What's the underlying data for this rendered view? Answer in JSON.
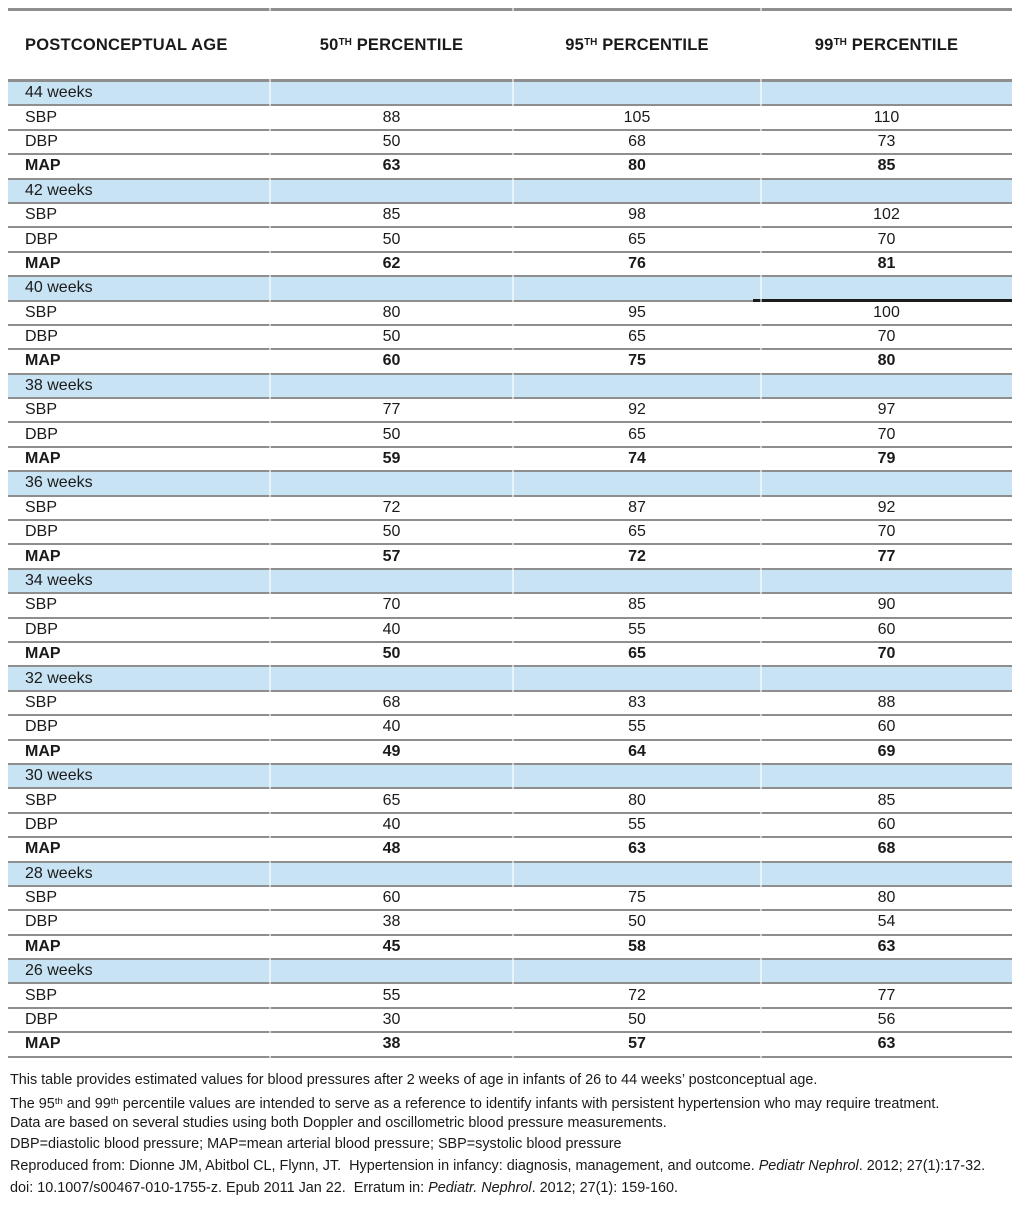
{
  "colors": {
    "band_blue": "#c8e3f3",
    "gridline_gray": "#8e8e8e",
    "artifact_black": "#1b1b1b",
    "text": "#1a1a1a"
  },
  "table": {
    "columns": [
      {
        "text": "POSTCONCEPTUAL AGE"
      },
      {
        "prefix": "50",
        "sup": "TH",
        "suffix": " PERCENTILE"
      },
      {
        "prefix": "95",
        "sup": "TH",
        "suffix": " PERCENTILE"
      },
      {
        "prefix": "99",
        "sup": "TH",
        "suffix": " PERCENTILE"
      }
    ],
    "groups": [
      {
        "age": "44 weeks",
        "artifact": false,
        "rows": [
          {
            "label": "SBP",
            "bold": false,
            "values": [
              "88",
              "105",
              "110"
            ]
          },
          {
            "label": "DBP",
            "bold": false,
            "values": [
              "50",
              "68",
              "73"
            ]
          },
          {
            "label": "MAP",
            "bold": true,
            "values": [
              "63",
              "80",
              "85"
            ]
          }
        ]
      },
      {
        "age": "42 weeks",
        "artifact": false,
        "rows": [
          {
            "label": "SBP",
            "bold": false,
            "values": [
              "85",
              "98",
              "102"
            ]
          },
          {
            "label": "DBP",
            "bold": false,
            "values": [
              "50",
              "65",
              "70"
            ]
          },
          {
            "label": "MAP",
            "bold": true,
            "values": [
              "62",
              "76",
              "81"
            ]
          }
        ]
      },
      {
        "age": "40 weeks",
        "artifact": true,
        "rows": [
          {
            "label": "SBP",
            "bold": false,
            "values": [
              "80",
              "95",
              "100"
            ]
          },
          {
            "label": "DBP",
            "bold": false,
            "values": [
              "50",
              "65",
              "70"
            ]
          },
          {
            "label": "MAP",
            "bold": true,
            "values": [
              "60",
              "75",
              "80"
            ]
          }
        ]
      },
      {
        "age": "38 weeks",
        "artifact": false,
        "rows": [
          {
            "label": "SBP",
            "bold": false,
            "values": [
              "77",
              "92",
              "97"
            ]
          },
          {
            "label": "DBP",
            "bold": false,
            "values": [
              "50",
              "65",
              "70"
            ]
          },
          {
            "label": "MAP",
            "bold": true,
            "values": [
              "59",
              "74",
              "79"
            ]
          }
        ]
      },
      {
        "age": "36 weeks",
        "artifact": false,
        "rows": [
          {
            "label": "SBP",
            "bold": false,
            "values": [
              "72",
              "87",
              "92"
            ]
          },
          {
            "label": "DBP",
            "bold": false,
            "values": [
              "50",
              "65",
              "70"
            ]
          },
          {
            "label": "MAP",
            "bold": true,
            "values": [
              "57",
              "72",
              "77"
            ]
          }
        ]
      },
      {
        "age": "34 weeks",
        "artifact": false,
        "rows": [
          {
            "label": "SBP",
            "bold": false,
            "values": [
              "70",
              "85",
              "90"
            ]
          },
          {
            "label": "DBP",
            "bold": false,
            "values": [
              "40",
              "55",
              "60"
            ]
          },
          {
            "label": "MAP",
            "bold": true,
            "values": [
              "50",
              "65",
              "70"
            ]
          }
        ]
      },
      {
        "age": "32 weeks",
        "artifact": false,
        "rows": [
          {
            "label": "SBP",
            "bold": false,
            "values": [
              "68",
              "83",
              "88"
            ]
          },
          {
            "label": "DBP",
            "bold": false,
            "values": [
              "40",
              "55",
              "60"
            ]
          },
          {
            "label": "MAP",
            "bold": true,
            "values": [
              "49",
              "64",
              "69"
            ]
          }
        ]
      },
      {
        "age": "30 weeks",
        "artifact": false,
        "rows": [
          {
            "label": "SBP",
            "bold": false,
            "values": [
              "65",
              "80",
              "85"
            ]
          },
          {
            "label": "DBP",
            "bold": false,
            "values": [
              "40",
              "55",
              "60"
            ]
          },
          {
            "label": "MAP",
            "bold": true,
            "values": [
              "48",
              "63",
              "68"
            ]
          }
        ]
      },
      {
        "age": "28 weeks",
        "artifact": false,
        "rows": [
          {
            "label": "SBP",
            "bold": false,
            "values": [
              "60",
              "75",
              "80"
            ]
          },
          {
            "label": "DBP",
            "bold": false,
            "values": [
              "38",
              "50",
              "54"
            ]
          },
          {
            "label": "MAP",
            "bold": true,
            "values": [
              "45",
              "58",
              "63"
            ]
          }
        ]
      },
      {
        "age": "26 weeks",
        "artifact": false,
        "rows": [
          {
            "label": "SBP",
            "bold": false,
            "values": [
              "55",
              "72",
              "77"
            ]
          },
          {
            "label": "DBP",
            "bold": false,
            "values": [
              "30",
              "50",
              "56"
            ]
          },
          {
            "label": "MAP",
            "bold": true,
            "values": [
              "38",
              "57",
              "63"
            ]
          }
        ]
      }
    ]
  },
  "footnotes": [
    {
      "segments": [
        {
          "t": "This table provides estimated values for blood pressures after 2 weeks of age in infants of 26 to 44 weeks’ postconceptual age."
        }
      ]
    },
    {
      "segments": [
        {
          "t": "The 95"
        },
        {
          "t": "th",
          "sup": true
        },
        {
          "t": " and 99"
        },
        {
          "t": "th",
          "sup": true
        },
        {
          "t": " percentile values are intended to serve as a reference to identify infants with persistent hypertension who may require treatment."
        }
      ]
    },
    {
      "segments": [
        {
          "t": "Data are based on several studies using both Doppler and oscillometric blood pressure measurements."
        }
      ]
    },
    {
      "segments": [
        {
          "t": "DBP=diastolic blood pressure; MAP=mean arterial blood pressure; SBP=systolic blood pressure"
        }
      ]
    },
    {
      "segments": [
        {
          "t": "Reproduced from: Dionne JM, Abitbol CL, Flynn, JT.  Hypertension in infancy: diagnosis, management, and outcome. "
        },
        {
          "t": "Pediatr Nephrol",
          "italic": true
        },
        {
          "t": ". 2012; 27(1):17-32."
        }
      ]
    },
    {
      "segments": [
        {
          "t": "doi: 10.1007/s00467-010-1755-z. Epub 2011 Jan 22.  Erratum in: "
        },
        {
          "t": "Pediatr. Nephrol",
          "italic": true
        },
        {
          "t": ". 2012; 27(1): 159-160."
        }
      ]
    }
  ]
}
